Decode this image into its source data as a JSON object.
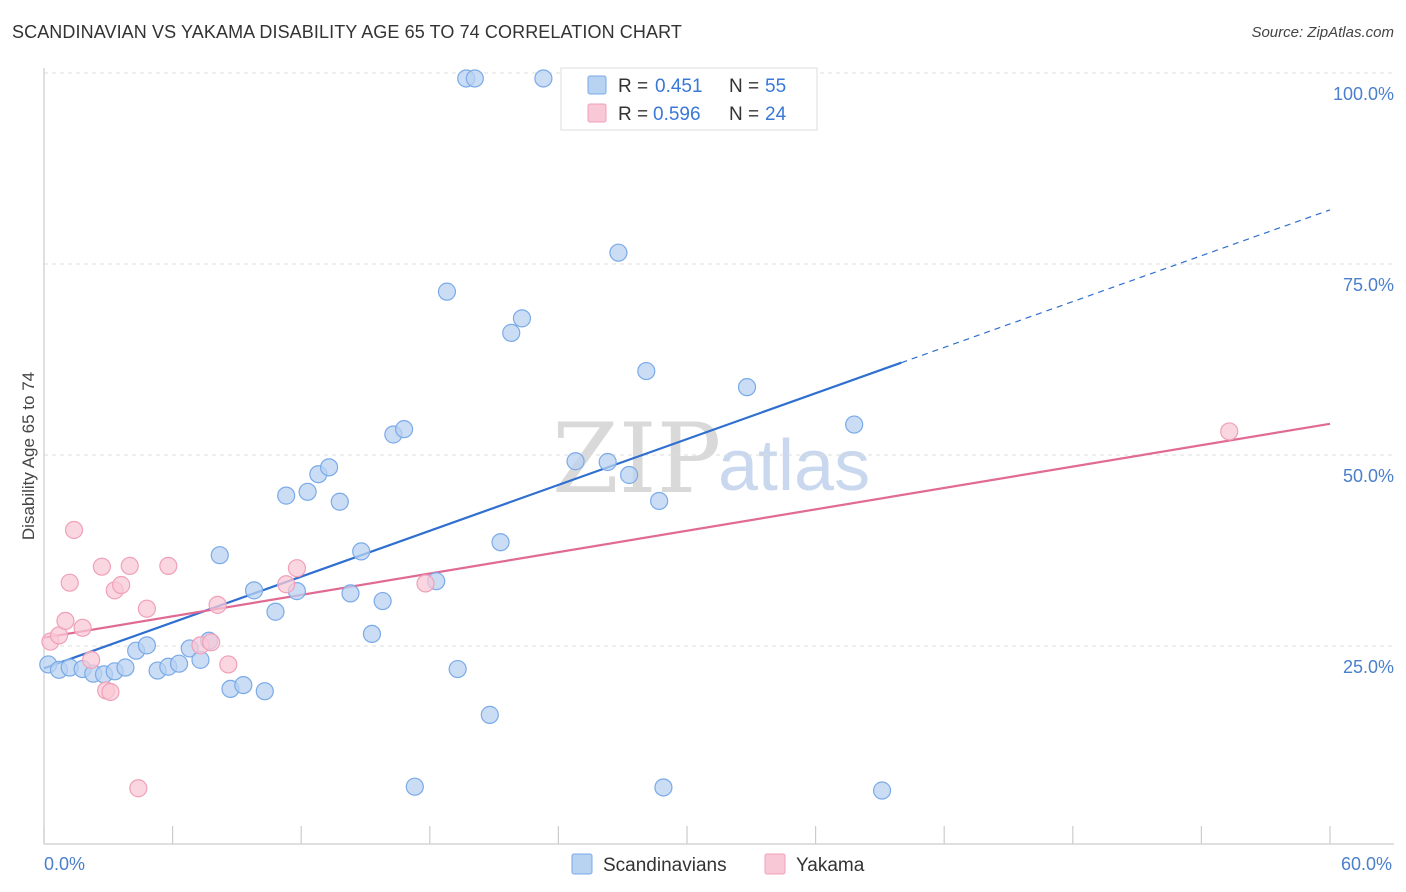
{
  "header": {
    "title": "SCANDINAVIAN VS YAKAMA DISABILITY AGE 65 TO 74 CORRELATION CHART",
    "source": "Source: ZipAtlas.com"
  },
  "watermark": {
    "part1": "ZIP",
    "part2": "atlas"
  },
  "legend_top": {
    "r_label": "R =",
    "n_label": "N =",
    "rows": [
      {
        "r": "0.451",
        "n": "55",
        "color": "#7aaae8"
      },
      {
        "r": "0.596",
        "n": "24",
        "color": "#f0a0b8"
      }
    ]
  },
  "legend_bottom": {
    "items": [
      "Scandinavians",
      "Yakama"
    ]
  },
  "colors": {
    "blue_fill": "#b8d2f2",
    "blue_stroke": "#7aaae8",
    "blue_line": "#2e6fd0",
    "pink_fill": "#f8c8d6",
    "pink_stroke": "#f0a0b8",
    "pink_line": "#e06a94",
    "tick": "#4a7fcc"
  },
  "chart_data": {
    "type": "scatter",
    "title": "SCANDINAVIAN VS YAKAMA DISABILITY AGE 65 TO 74 CORRELATION CHART",
    "xlabel": "",
    "ylabel": "Disability Age 65 to 74",
    "xlim": [
      0,
      60
    ],
    "ylim": [
      0,
      100
    ],
    "x_tick_labels": [
      "0.0%",
      "60.0%"
    ],
    "y_ticks": [
      25,
      50,
      75,
      100
    ],
    "y_tick_labels": [
      "25.0%",
      "50.0%",
      "75.0%",
      "100.0%"
    ],
    "grid": true,
    "series": [
      {
        "name": "Scandinavians",
        "points": [
          [
            0.2,
            23.5
          ],
          [
            0.7,
            22.8
          ],
          [
            1.2,
            23.1
          ],
          [
            1.8,
            22.9
          ],
          [
            2.3,
            22.3
          ],
          [
            2.8,
            22.2
          ],
          [
            3.3,
            22.6
          ],
          [
            3.8,
            23.1
          ],
          [
            4.3,
            25.3
          ],
          [
            4.8,
            26.0
          ],
          [
            5.3,
            22.7
          ],
          [
            5.8,
            23.2
          ],
          [
            6.3,
            23.6
          ],
          [
            6.8,
            25.6
          ],
          [
            7.3,
            24.1
          ],
          [
            7.7,
            26.6
          ],
          [
            8.2,
            37.8
          ],
          [
            8.7,
            20.3
          ],
          [
            9.3,
            20.8
          ],
          [
            9.8,
            33.2
          ],
          [
            10.3,
            20.0
          ],
          [
            10.8,
            30.4
          ],
          [
            11.3,
            45.6
          ],
          [
            11.8,
            33.1
          ],
          [
            12.3,
            46.1
          ],
          [
            12.8,
            48.4
          ],
          [
            13.3,
            49.3
          ],
          [
            13.8,
            44.8
          ],
          [
            14.3,
            32.8
          ],
          [
            14.8,
            38.3
          ],
          [
            15.3,
            27.5
          ],
          [
            15.8,
            31.8
          ],
          [
            16.3,
            53.6
          ],
          [
            16.8,
            54.3
          ],
          [
            17.3,
            7.5
          ],
          [
            18.3,
            34.4
          ],
          [
            18.8,
            72.3
          ],
          [
            19.3,
            22.9
          ],
          [
            19.7,
            100.2
          ],
          [
            20.1,
            100.2
          ],
          [
            20.8,
            16.9
          ],
          [
            21.3,
            39.5
          ],
          [
            21.8,
            66.9
          ],
          [
            22.3,
            68.8
          ],
          [
            23.3,
            100.2
          ],
          [
            24.8,
            50.1
          ],
          [
            26.3,
            50.0
          ],
          [
            26.8,
            77.4
          ],
          [
            27.3,
            48.3
          ],
          [
            28.1,
            61.9
          ],
          [
            28.7,
            44.9
          ],
          [
            28.9,
            7.4
          ],
          [
            32.8,
            59.8
          ],
          [
            37.8,
            54.9
          ],
          [
            39.1,
            7.0
          ]
        ],
        "trend": {
          "x0": 0,
          "y0": 23.0,
          "x1": 40.0,
          "y1": 63.0,
          "dashed_to_x": 60.0,
          "dashed_to_y": 83.0
        }
      },
      {
        "name": "Yakama",
        "points": [
          [
            0.3,
            26.5
          ],
          [
            0.7,
            27.3
          ],
          [
            1.0,
            29.2
          ],
          [
            1.2,
            34.2
          ],
          [
            1.4,
            41.1
          ],
          [
            1.8,
            28.3
          ],
          [
            2.2,
            24.1
          ],
          [
            2.7,
            36.3
          ],
          [
            2.9,
            20.1
          ],
          [
            3.1,
            19.9
          ],
          [
            3.3,
            33.2
          ],
          [
            3.6,
            33.9
          ],
          [
            4.0,
            36.4
          ],
          [
            4.4,
            7.3
          ],
          [
            4.8,
            30.8
          ],
          [
            5.8,
            36.4
          ],
          [
            7.3,
            26.0
          ],
          [
            7.8,
            26.4
          ],
          [
            8.1,
            31.3
          ],
          [
            8.6,
            23.5
          ],
          [
            11.3,
            34.0
          ],
          [
            11.8,
            36.1
          ],
          [
            17.8,
            34.1
          ],
          [
            55.3,
            54.0
          ]
        ],
        "trend": {
          "x0": 0,
          "y0": 27.0,
          "x1": 60.0,
          "y1": 55.0
        }
      }
    ]
  }
}
